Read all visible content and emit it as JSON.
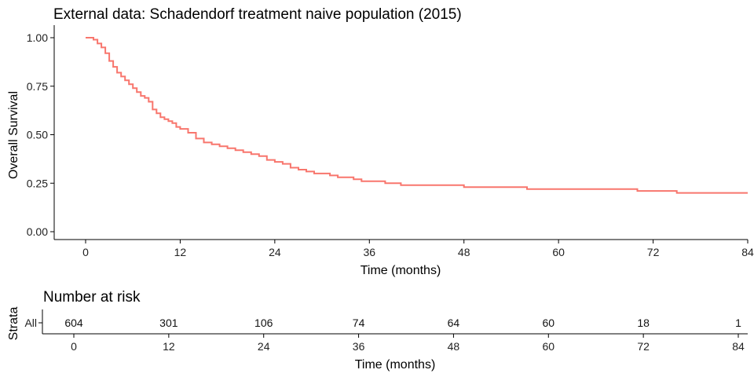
{
  "chart_data": [
    {
      "type": "line",
      "title": "External data: Schadendorf treatment naive population (2015)",
      "xlabel": "Time (months)",
      "ylabel": "Overall Survival",
      "xlim": [
        0,
        84
      ],
      "ylim": [
        0,
        1
      ],
      "xticks": [
        "0",
        "12",
        "24",
        "36",
        "48",
        "60",
        "72",
        "84"
      ],
      "yticks": [
        "0.00",
        "0.25",
        "0.50",
        "0.75",
        "1.00"
      ],
      "grid": false,
      "color": "#F8766D",
      "series": [
        {
          "x": [
            0,
            0.3,
            1,
            1.5,
            2,
            2.5,
            3,
            3.5,
            4,
            4.5,
            5,
            5.5,
            6,
            6.5,
            7,
            7.5,
            8,
            8.5,
            9,
            9.5,
            10,
            10.5,
            11,
            11.5,
            12,
            13,
            14,
            15,
            16,
            17,
            18,
            19,
            20,
            21,
            22,
            23,
            24,
            25,
            26,
            27,
            28,
            29,
            30,
            31,
            32,
            33,
            34,
            35,
            36,
            38,
            40,
            42,
            44,
            46,
            48,
            52,
            56,
            60,
            64,
            67,
            70,
            74,
            75,
            78,
            84
          ],
          "y": [
            1.0,
            1.0,
            0.99,
            0.97,
            0.95,
            0.92,
            0.88,
            0.85,
            0.82,
            0.8,
            0.78,
            0.76,
            0.74,
            0.72,
            0.7,
            0.69,
            0.67,
            0.63,
            0.61,
            0.59,
            0.58,
            0.57,
            0.56,
            0.54,
            0.53,
            0.51,
            0.48,
            0.46,
            0.45,
            0.44,
            0.43,
            0.42,
            0.41,
            0.4,
            0.39,
            0.37,
            0.36,
            0.35,
            0.33,
            0.32,
            0.31,
            0.3,
            0.3,
            0.29,
            0.28,
            0.28,
            0.27,
            0.26,
            0.26,
            0.25,
            0.24,
            0.24,
            0.24,
            0.24,
            0.23,
            0.23,
            0.22,
            0.22,
            0.22,
            0.22,
            0.21,
            0.21,
            0.2,
            0.2,
            0.2
          ]
        }
      ]
    },
    {
      "type": "table",
      "title": "Number at risk",
      "xlabel": "Time (months)",
      "ylabel": "Strata",
      "xlim": [
        0,
        84
      ],
      "xticks": [
        "0",
        "12",
        "24",
        "36",
        "48",
        "60",
        "72",
        "84"
      ],
      "strata": "All",
      "color": "#F8766D",
      "times": [
        0,
        12,
        24,
        36,
        48,
        60,
        72,
        84
      ],
      "values": [
        "604",
        "301",
        "106",
        "74",
        "64",
        "60",
        "18",
        "1"
      ]
    }
  ]
}
